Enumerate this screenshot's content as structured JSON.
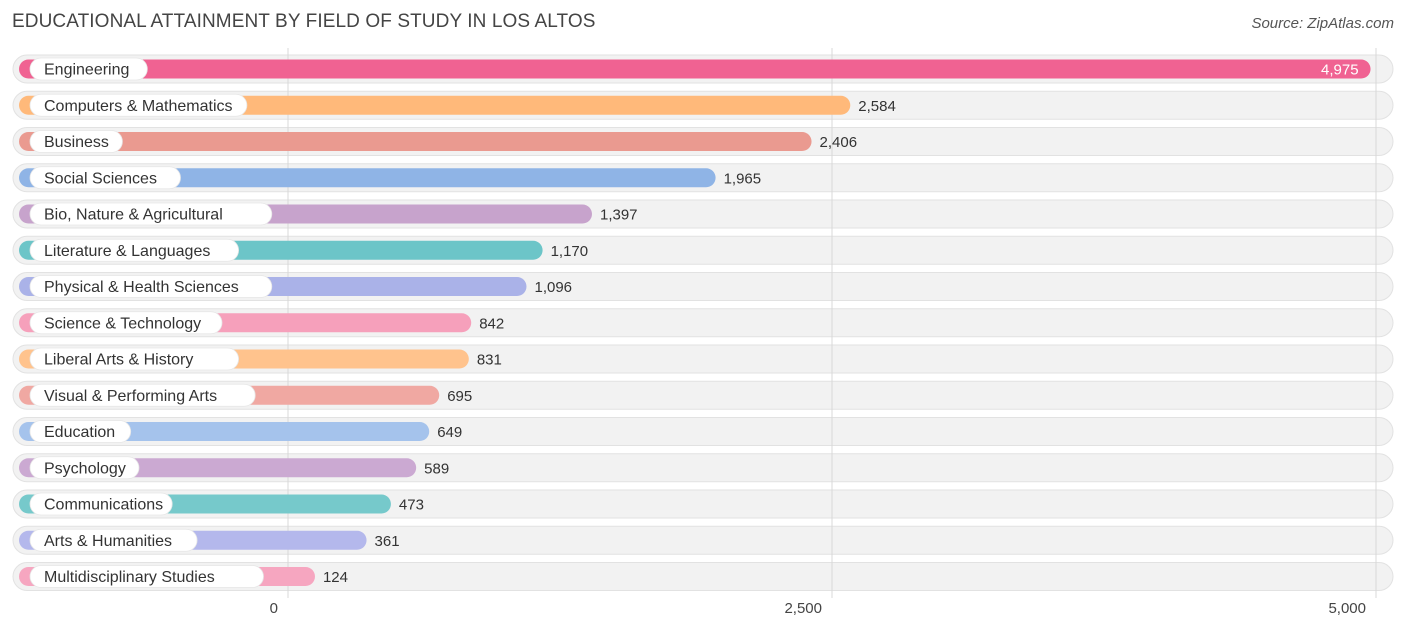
{
  "header": {
    "title": "EDUCATIONAL ATTAINMENT BY FIELD OF STUDY IN LOS ALTOS",
    "source": "Source: ZipAtlas.com"
  },
  "chart_data": {
    "type": "bar",
    "orientation": "horizontal",
    "title": "EDUCATIONAL ATTAINMENT BY FIELD OF STUDY IN LOS ALTOS",
    "xlabel": "",
    "ylabel": "",
    "xlim": [
      0,
      5000
    ],
    "ticks": [
      0,
      2500,
      5000
    ],
    "tick_labels": [
      "0",
      "2,500",
      "5,000"
    ],
    "grid": true,
    "categories": [
      "Engineering",
      "Computers & Mathematics",
      "Business",
      "Social Sciences",
      "Bio, Nature & Agricultural",
      "Literature & Languages",
      "Physical & Health Sciences",
      "Science & Technology",
      "Liberal Arts & History",
      "Visual & Performing Arts",
      "Education",
      "Psychology",
      "Communications",
      "Arts & Humanities",
      "Multidisciplinary Studies"
    ],
    "values": [
      4975,
      2584,
      2406,
      1965,
      1397,
      1170,
      1096,
      842,
      831,
      695,
      649,
      589,
      473,
      361,
      124
    ],
    "value_labels": [
      "4,975",
      "2,584",
      "2,406",
      "1,965",
      "1,397",
      "1,170",
      "1,096",
      "842",
      "831",
      "695",
      "649",
      "589",
      "473",
      "361",
      "124"
    ],
    "colors": [
      "#f06292",
      "#ffb97a",
      "#ea9a90",
      "#8fb4e6",
      "#c7a3cc",
      "#6cc5c8",
      "#aab2e8",
      "#f6a0bb",
      "#ffc38d",
      "#f0a8a2",
      "#a5c3ec",
      "#cba9d2",
      "#76c9cb",
      "#b4b8ec",
      "#f6a6c0"
    ]
  }
}
